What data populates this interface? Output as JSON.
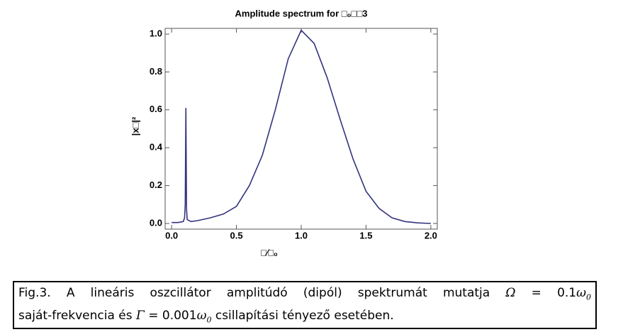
{
  "chart_data": {
    "type": "line",
    "title": "Amplitude spectrum for □₀□□3",
    "x_label": "□⁄□₀",
    "y_label": "|x□|²",
    "series": [
      {
        "color": "#33337f",
        "x": [
          0,
          0.05,
          0.09,
          0.1,
          0.105,
          0.11,
          0.115,
          0.12,
          0.15,
          0.2,
          0.3,
          0.4,
          0.5,
          0.6,
          0.7,
          0.8,
          0.9,
          1.0,
          1.1,
          1.2,
          1.3,
          1.4,
          1.5,
          1.6,
          1.7,
          1.8,
          1.9,
          2.0
        ],
        "values": [
          0.005,
          0.005,
          0.01,
          0.03,
          0.1,
          0.61,
          0.08,
          0.02,
          0.01,
          0.015,
          0.03,
          0.05,
          0.09,
          0.2,
          0.36,
          0.6,
          0.87,
          1.02,
          0.95,
          0.77,
          0.55,
          0.34,
          0.17,
          0.08,
          0.03,
          0.01,
          0.003,
          0
        ]
      }
    ],
    "xlim": [
      -0.05,
      2.05
    ],
    "ylim": [
      -0.03,
      1.03
    ],
    "xticks": [
      {
        "value": 0,
        "label": "0.0"
      },
      0.5,
      {
        "value": 1,
        "label": "1.0"
      },
      1.5,
      {
        "value": 2,
        "label": "2.0"
      }
    ],
    "yticks": [
      {
        "value": 0,
        "label": "0.0"
      },
      0.2,
      0.4,
      0.6,
      0.8,
      {
        "value": 1,
        "label": "1.0"
      }
    ],
    "grid": false
  },
  "caption": {
    "lines": [
      [
        "Fig.3. A lineáris oszcillátor amplitúdó (dipól) spektrumát mutatja ",
        "Ω",
        " = 0.1",
        "ω",
        "0"
      ],
      [
        "saját-frekvencia és ",
        "Γ",
        " = 0.001",
        "ω",
        "0",
        " csillapítási tényező esetében."
      ]
    ]
  }
}
